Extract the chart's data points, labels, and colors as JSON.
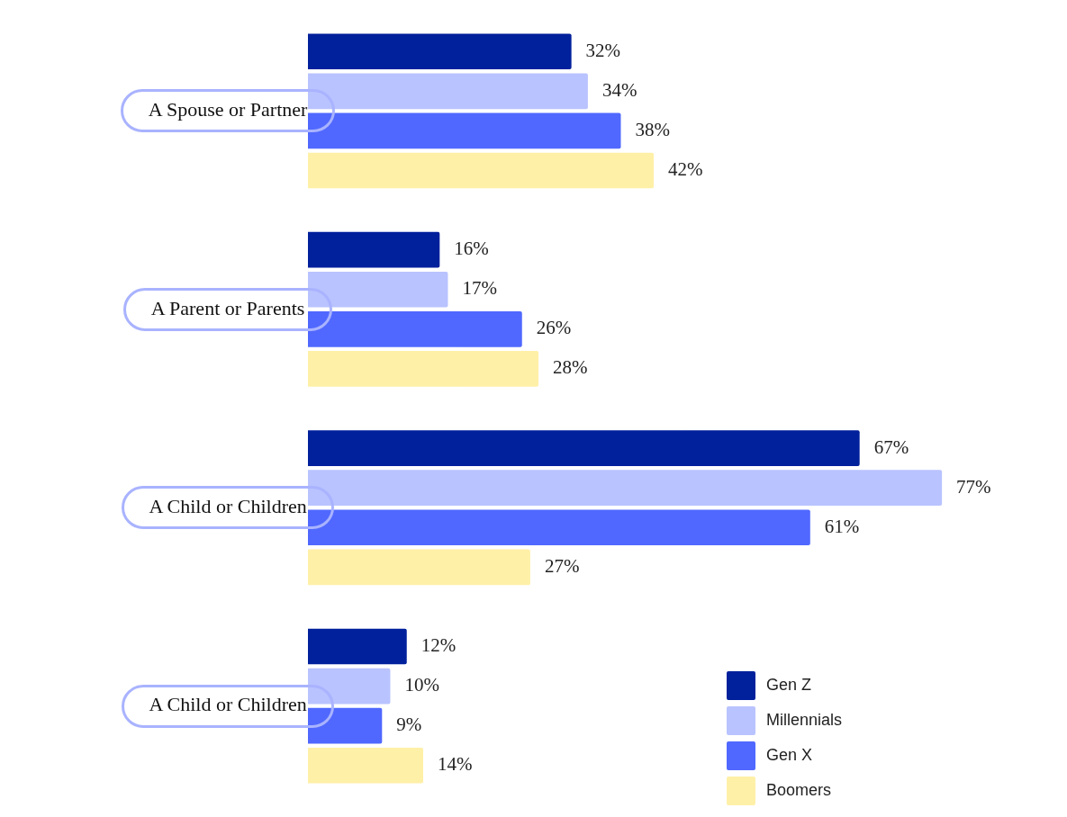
{
  "chart_data": {
    "type": "bar",
    "orientation": "horizontal",
    "categories": [
      "A Spouse or Partner",
      "A Parent or Parents",
      "A Child or Children",
      "A Child or Children"
    ],
    "series": [
      {
        "name": "Gen Z",
        "color": "#00209c",
        "values": [
          32,
          16,
          67,
          12
        ],
        "value_labels": [
          "32%",
          "16%",
          "67%",
          "12%"
        ]
      },
      {
        "name": "Millennials",
        "color": "#b9c3ff",
        "values": [
          34,
          17,
          77,
          10
        ],
        "value_labels": [
          "34%",
          "17%",
          "77%",
          "10%"
        ]
      },
      {
        "name": "Gen X",
        "color": "#5068ff",
        "values": [
          38,
          26,
          61,
          9
        ],
        "value_labels": [
          "38%",
          "26%",
          "61%",
          "9%"
        ]
      },
      {
        "name": "Boomers",
        "color": "#fff0a8",
        "values": [
          42,
          28,
          27,
          14
        ],
        "value_labels": [
          "42%",
          "28%",
          "27%",
          "14%"
        ]
      }
    ],
    "legend": "bottom right"
  }
}
